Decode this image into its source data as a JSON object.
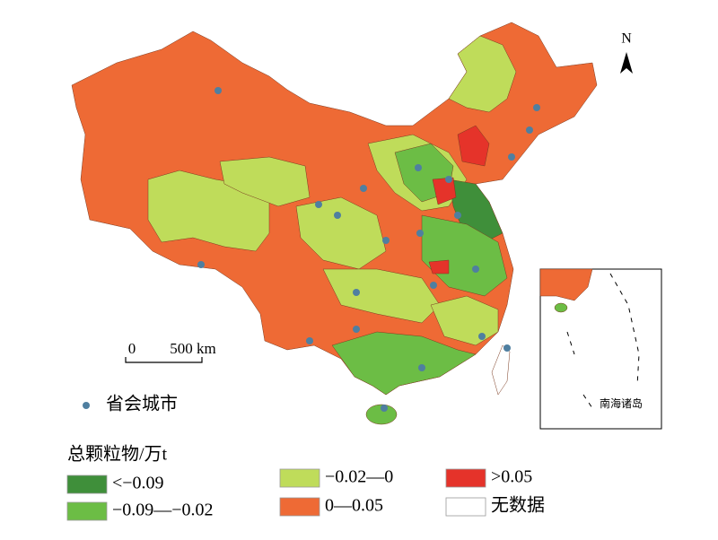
{
  "map": {
    "north_label": "N",
    "scale_bar": {
      "start": "0",
      "end": "500 km"
    },
    "capital_legend": "省会城市",
    "inset_label": "南海诸岛"
  },
  "legend": {
    "title": "总颗粒物/万t",
    "items": [
      {
        "label": "<−0.09",
        "color": "#3f8f3a"
      },
      {
        "label": "−0.09—−0.02",
        "color": "#6cbd45"
      },
      {
        "label": "−0.02—0",
        "color": "#bfdc5a"
      },
      {
        "label": "0—0.05",
        "color": "#ee6a35"
      },
      {
        "label": ">0.05",
        "color": "#e5332a"
      },
      {
        "label": "无数据",
        "color": "#ffffff"
      }
    ]
  }
}
